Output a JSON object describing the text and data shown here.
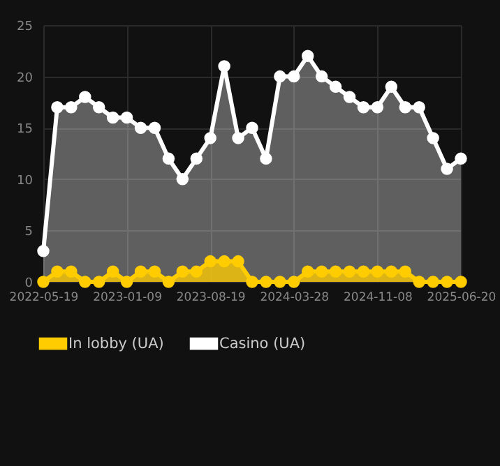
{
  "chart_data": {
    "type": "area",
    "categories": [
      "2022-05-19",
      null,
      null,
      null,
      null,
      null,
      "2023-01-09",
      null,
      null,
      null,
      null,
      null,
      "2023-08-19",
      null,
      null,
      null,
      null,
      null,
      "2024-03-28",
      null,
      null,
      null,
      null,
      null,
      "2024-11-08",
      null,
      null,
      null,
      null,
      null,
      "2025-06-20"
    ],
    "series": [
      {
        "name": "In lobby (UA)",
        "color": "#ffcc00",
        "values": [
          0,
          1,
          1,
          0,
          0,
          1,
          0,
          1,
          1,
          0,
          1,
          1,
          2,
          2,
          2,
          0,
          0,
          0,
          0,
          1,
          1,
          1,
          1,
          1,
          1,
          1,
          1,
          0,
          0,
          0,
          0
        ]
      },
      {
        "name": "Casino (UA)",
        "color": "#ffffff",
        "values": [
          3,
          17,
          17,
          18,
          17,
          16,
          16,
          15,
          15,
          12,
          10,
          12,
          14,
          21,
          14,
          15,
          12,
          20,
          20,
          22,
          20,
          19,
          18,
          17,
          17,
          19,
          17,
          17,
          14,
          11,
          12
        ]
      }
    ],
    "ylim": [
      0,
      25
    ],
    "yticks": [
      0,
      5,
      10,
      15,
      20,
      25
    ],
    "grid": true,
    "legend": "bottom",
    "marker": "circle",
    "line_style": "solid"
  }
}
